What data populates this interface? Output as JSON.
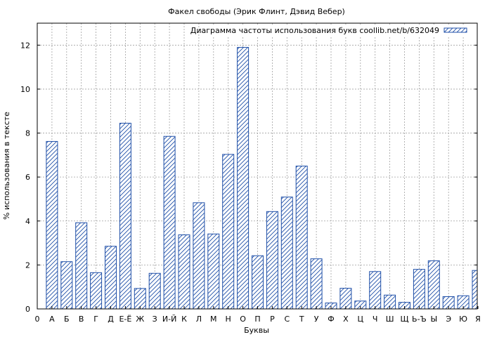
{
  "chart_data": {
    "type": "bar",
    "title": "Факел свободы (Эрик Флинт, Дэвид Вебер)",
    "xlabel": "Буквы",
    "ylabel": "% использования в тексте",
    "legend": {
      "label": "Диаграмма частоты использования букв coollib.net/b/632049",
      "placement": "top-right"
    },
    "categories": [
      "0",
      "А",
      "Б",
      "В",
      "Г",
      "Д",
      "Е-Ё",
      "Ж",
      "З",
      "И-Й",
      "К",
      "Л",
      "М",
      "Н",
      "О",
      "П",
      "Р",
      "С",
      "Т",
      "У",
      "Ф",
      "Х",
      "Ц",
      "Ч",
      "Ш",
      "Щ",
      "Ь-Ъ",
      "Ы",
      "Э",
      "Ю",
      "Я"
    ],
    "values": [
      0,
      7.62,
      2.15,
      3.92,
      1.65,
      2.85,
      8.45,
      0.93,
      1.62,
      7.85,
      3.37,
      4.83,
      3.41,
      7.03,
      11.9,
      2.42,
      4.43,
      5.09,
      6.5,
      2.28,
      0.27,
      0.94,
      0.36,
      1.7,
      0.63,
      0.3,
      1.8,
      2.19,
      0.56,
      0.6,
      1.75
    ],
    "ylim": [
      0,
      13
    ],
    "yticks": [
      0,
      2,
      4,
      6,
      8,
      10,
      12
    ],
    "grid": true,
    "colors": {
      "bar_stroke": "#1f4fa8",
      "hatch": "#1f4fa8",
      "grid": "#a0a0a0"
    }
  }
}
